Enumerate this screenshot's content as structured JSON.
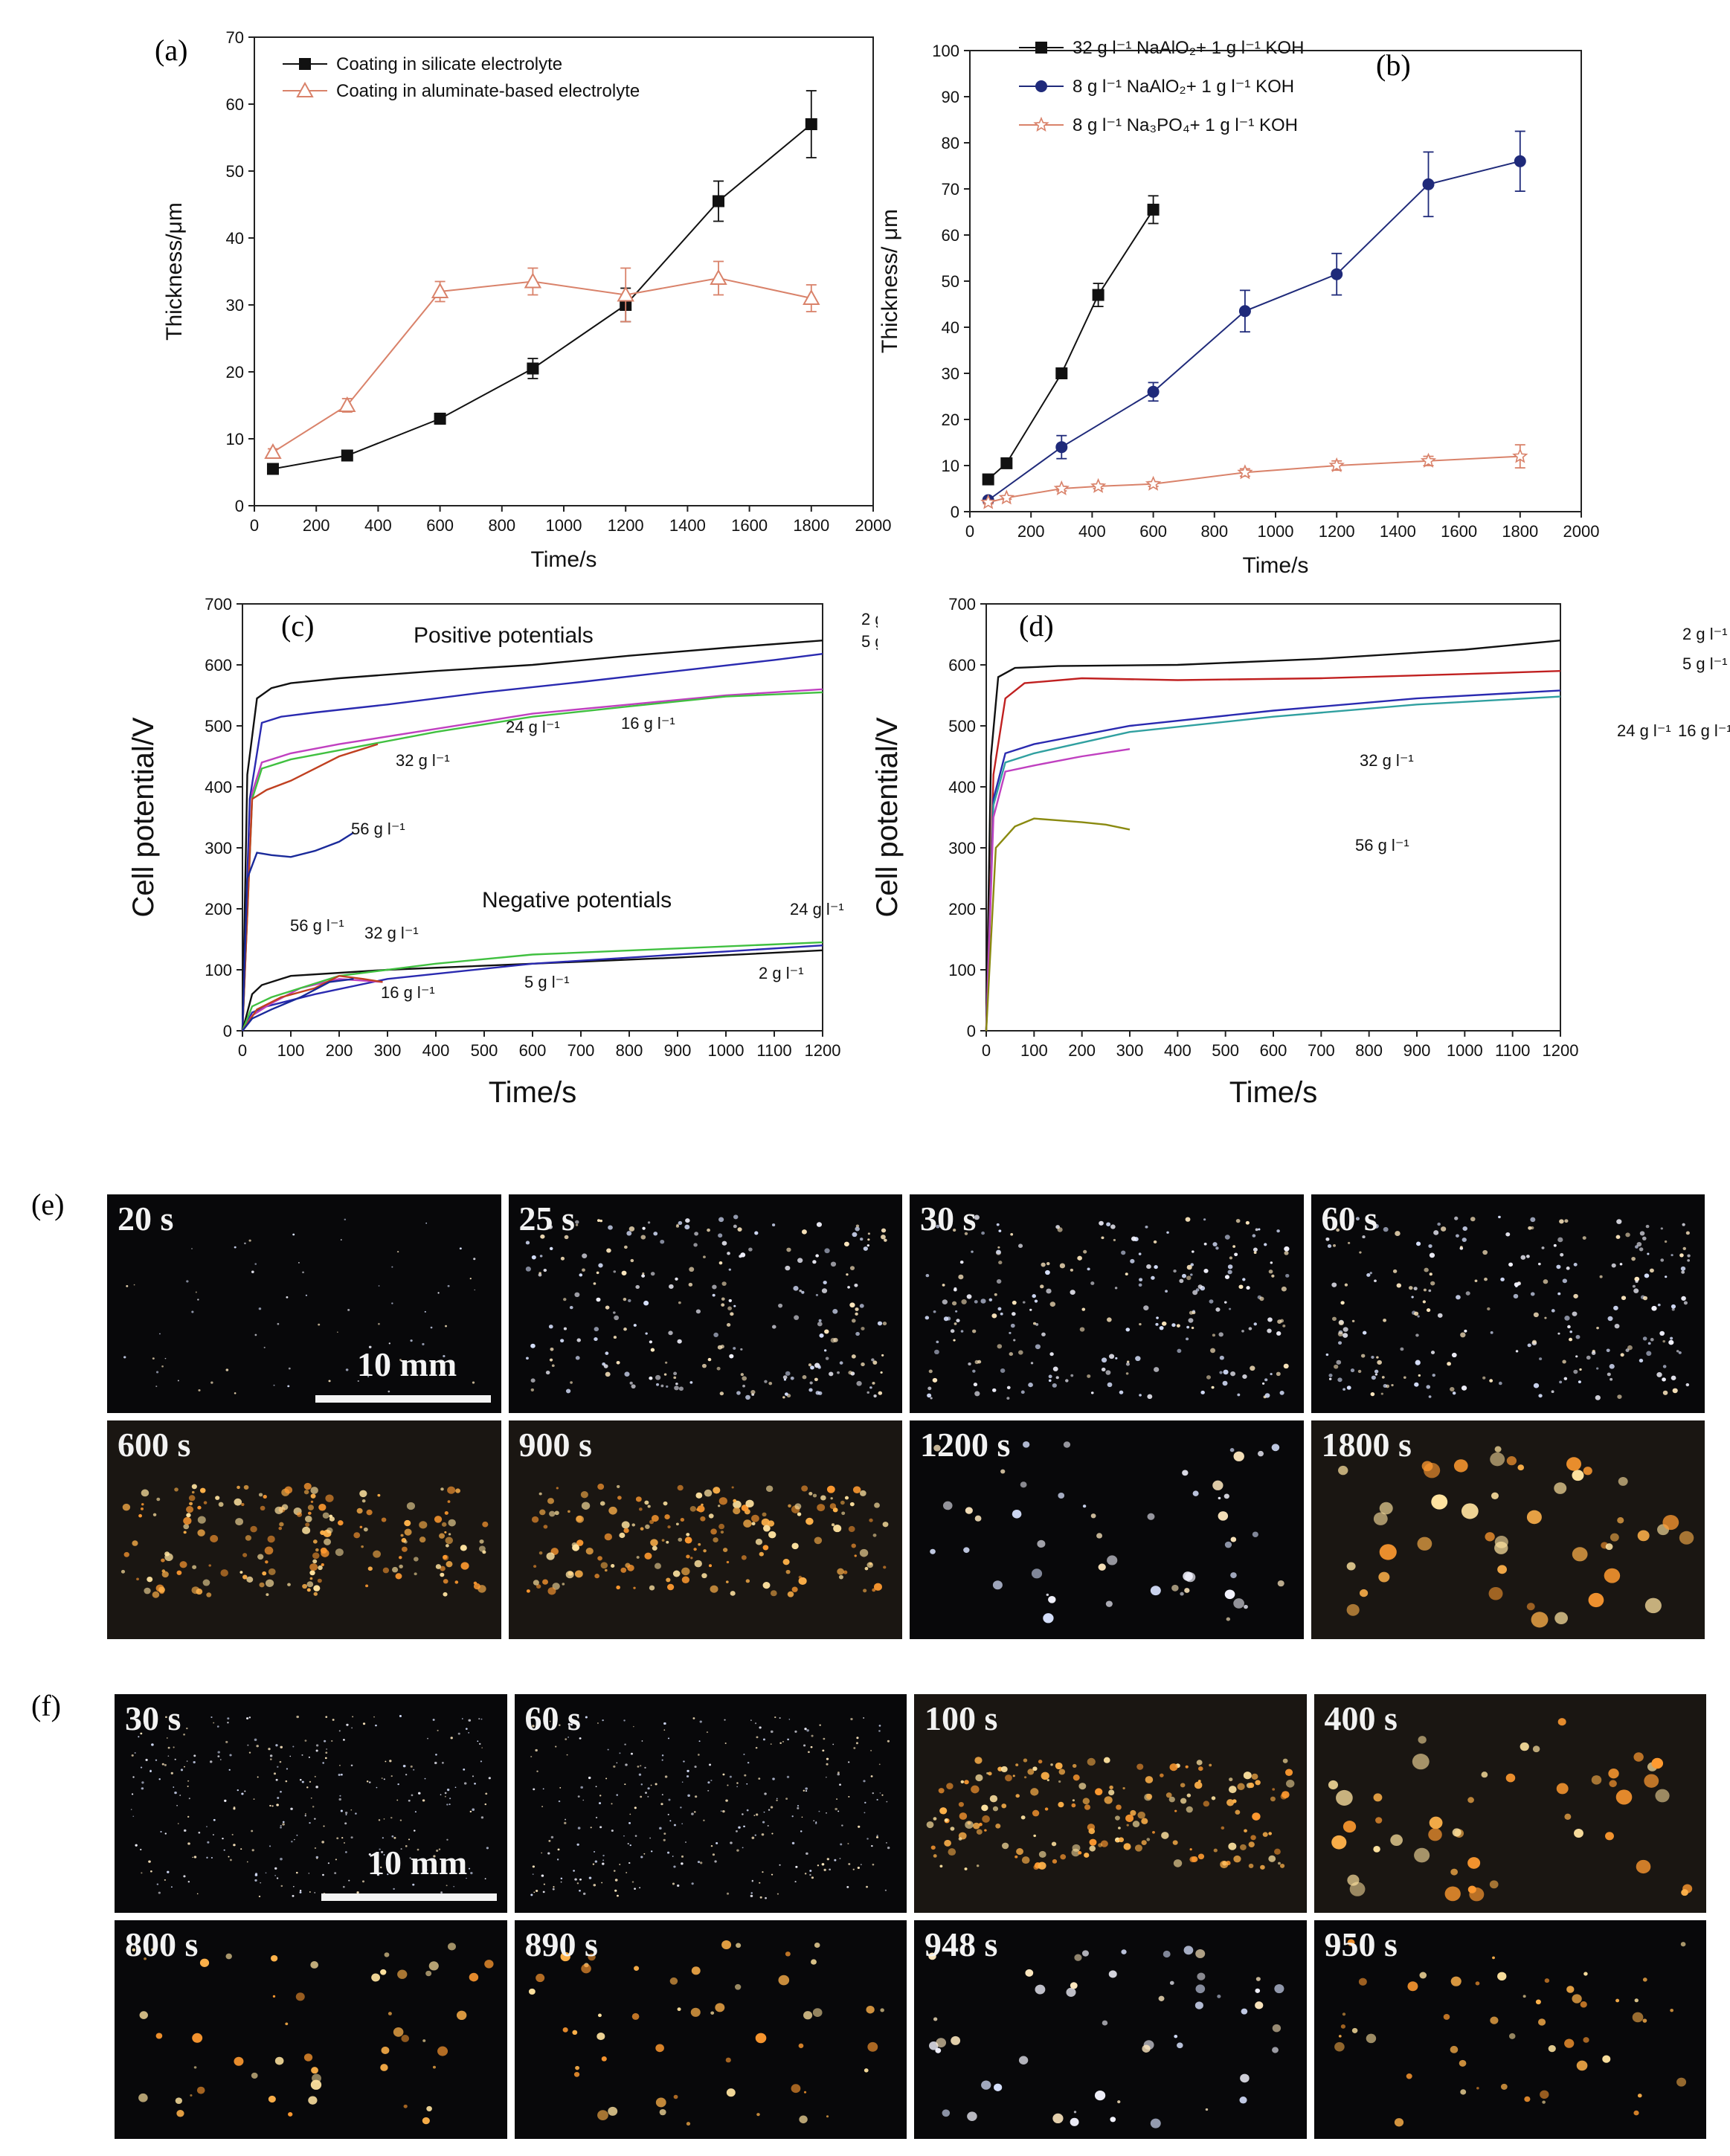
{
  "panels": {
    "a": "(a)",
    "b": "(b)",
    "c": "(c)",
    "d": "(d)",
    "e": "(e)",
    "f": "(f)"
  },
  "chart_data": [
    {
      "id": "a",
      "type": "line",
      "xlabel": "Time/s",
      "ylabel": "Thickness/μm",
      "xlim": [
        0,
        2000
      ],
      "ylim": [
        0,
        70
      ],
      "xticks": [
        0,
        200,
        400,
        600,
        800,
        1000,
        1200,
        1400,
        1600,
        1800,
        2000
      ],
      "yticks": [
        0,
        10,
        20,
        30,
        40,
        50,
        60,
        70
      ],
      "legend_position": "top-left",
      "series": [
        {
          "name": "Coating in silicate electrolyte",
          "color": "#111111",
          "marker": "square-filled",
          "x": [
            60,
            300,
            600,
            900,
            1200,
            1500,
            1800
          ],
          "y": [
            5.5,
            7.5,
            13,
            20.5,
            30,
            45.5,
            57
          ],
          "err": [
            0.5,
            0.5,
            0.8,
            1.5,
            2.5,
            3.0,
            5.0
          ]
        },
        {
          "name": "Coating in aluminate-based electrolyte",
          "color": "#d9826a",
          "marker": "triangle-open",
          "x": [
            60,
            300,
            600,
            900,
            1200,
            1500,
            1800
          ],
          "y": [
            8,
            15,
            32,
            33.5,
            31.5,
            34,
            31
          ],
          "err": [
            0.5,
            1.0,
            1.5,
            2.0,
            4.0,
            2.5,
            2.0
          ]
        }
      ]
    },
    {
      "id": "b",
      "type": "line",
      "xlabel": "Time/s",
      "ylabel": "Thickness/ μm",
      "xlim": [
        0,
        2000
      ],
      "ylim": [
        0,
        100
      ],
      "xticks": [
        0,
        200,
        400,
        600,
        800,
        1000,
        1200,
        1400,
        1600,
        1800,
        2000
      ],
      "yticks": [
        0,
        10,
        20,
        30,
        40,
        50,
        60,
        70,
        80,
        90,
        100
      ],
      "legend_position": "top-left",
      "series": [
        {
          "name": "32 g l⁻¹ NaAlO₂+ 1 g l⁻¹ KOH",
          "color": "#111111",
          "marker": "square-filled",
          "x": [
            60,
            120,
            300,
            420,
            600
          ],
          "y": [
            7,
            10.5,
            30,
            47,
            65.5
          ],
          "err": [
            0.5,
            0.6,
            1.0,
            2.5,
            3.0
          ]
        },
        {
          "name": "8 g l⁻¹ NaAlO₂+ 1 g l⁻¹ KOH",
          "color": "#1f2a7a",
          "marker": "circle-filled",
          "x": [
            60,
            300,
            600,
            900,
            1200,
            1500,
            1800
          ],
          "y": [
            2.5,
            14,
            26,
            43.5,
            51.5,
            71,
            76
          ],
          "err": [
            0.5,
            2.5,
            2.0,
            4.5,
            4.5,
            7.0,
            6.5
          ]
        },
        {
          "name": "8 g l⁻¹ Na₃PO₄+ 1 g l⁻¹ KOH",
          "color": "#d9826a",
          "marker": "star-open",
          "x": [
            60,
            120,
            300,
            420,
            600,
            900,
            1200,
            1500,
            1800
          ],
          "y": [
            2,
            3,
            5,
            5.5,
            6,
            8.5,
            10,
            11,
            12
          ],
          "err": [
            0.3,
            0.3,
            0.5,
            0.5,
            0.5,
            0.8,
            1.0,
            1.0,
            2.5
          ]
        }
      ]
    },
    {
      "id": "c",
      "type": "line",
      "xlabel": "Time/s",
      "ylabel": "Cell potential/V",
      "xlim": [
        0,
        1200
      ],
      "ylim": [
        0,
        700
      ],
      "xticks": [
        0,
        100,
        200,
        300,
        400,
        500,
        600,
        700,
        800,
        900,
        1000,
        1100,
        1200
      ],
      "yticks": [
        0,
        100,
        200,
        300,
        400,
        500,
        600,
        700
      ],
      "annotations": [
        "Positive potentials",
        "Negative potentials"
      ],
      "series": [
        {
          "name": "2 g l⁻¹",
          "color": "#111111",
          "x": [
            0,
            10,
            30,
            60,
            100,
            200,
            400,
            600,
            800,
            1000,
            1200
          ],
          "y": [
            0,
            420,
            545,
            562,
            570,
            578,
            590,
            600,
            615,
            628,
            640
          ]
        },
        {
          "name": "5 g l⁻¹",
          "color": "#2a2ab0",
          "x": [
            0,
            15,
            40,
            80,
            150,
            300,
            500,
            700,
            900,
            1100,
            1200
          ],
          "y": [
            0,
            380,
            505,
            515,
            522,
            535,
            555,
            572,
            590,
            608,
            618
          ]
        },
        {
          "name": "16 g l⁻¹",
          "color": "#c040c0",
          "x": [
            0,
            20,
            40,
            100,
            200,
            400,
            600,
            800,
            1000,
            1200
          ],
          "y": [
            0,
            390,
            440,
            455,
            470,
            495,
            520,
            535,
            550,
            560
          ]
        },
        {
          "name": "24 g l⁻¹",
          "color": "#40c040",
          "x": [
            0,
            20,
            40,
            100,
            200,
            400,
            600,
            800,
            1000,
            1200
          ],
          "y": [
            0,
            380,
            430,
            445,
            460,
            490,
            515,
            532,
            548,
            555
          ]
        },
        {
          "name": "32 g l⁻¹",
          "color": "#c04020",
          "x": [
            0,
            20,
            50,
            100,
            150,
            200,
            240,
            280
          ],
          "y": [
            0,
            380,
            395,
            410,
            430,
            450,
            460,
            470
          ]
        },
        {
          "name": "56 g l⁻¹",
          "color": "#1a2a9a",
          "x": [
            0,
            10,
            30,
            60,
            100,
            150,
            200,
            230
          ],
          "y": [
            0,
            250,
            292,
            288,
            285,
            295,
            310,
            325
          ]
        },
        {
          "name": "2 g l⁻¹",
          "color": "#111111",
          "x": [
            0,
            20,
            40,
            100,
            300,
            600,
            900,
            1200
          ],
          "y": [
            0,
            60,
            75,
            90,
            100,
            110,
            120,
            132
          ]
        },
        {
          "name": "5 g l⁻¹",
          "color": "#2a2ab0",
          "x": [
            0,
            20,
            50,
            150,
            300,
            600,
            900,
            1200
          ],
          "y": [
            0,
            30,
            40,
            60,
            85,
            110,
            125,
            140
          ]
        },
        {
          "name": "16 g l⁻¹",
          "color": "#c040c0",
          "x": [
            0,
            20,
            60,
            120,
            200,
            290
          ],
          "y": [
            0,
            25,
            45,
            70,
            85,
            80
          ]
        },
        {
          "name": "24 g l⁻¹",
          "color": "#40c040",
          "x": [
            0,
            20,
            60,
            200,
            400,
            600,
            900,
            1200
          ],
          "y": [
            0,
            40,
            55,
            90,
            110,
            125,
            135,
            145
          ]
        },
        {
          "name": "32 g l⁻¹",
          "color": "#c04020",
          "x": [
            0,
            30,
            80,
            150,
            200,
            250,
            290
          ],
          "y": [
            0,
            35,
            55,
            70,
            90,
            85,
            80
          ]
        },
        {
          "name": "56 g l⁻¹",
          "color": "#1a2a9a",
          "x": [
            0,
            20,
            60,
            120,
            180,
            230
          ],
          "y": [
            0,
            20,
            35,
            55,
            80,
            85
          ]
        }
      ]
    },
    {
      "id": "d",
      "type": "line",
      "xlabel": "Time/s",
      "ylabel": "Cell potential/V",
      "xlim": [
        0,
        1200
      ],
      "ylim": [
        0,
        700
      ],
      "xticks": [
        0,
        100,
        200,
        300,
        400,
        500,
        600,
        700,
        800,
        900,
        1000,
        1100,
        1200
      ],
      "yticks": [
        0,
        100,
        200,
        300,
        400,
        500,
        600,
        700
      ],
      "series": [
        {
          "name": "2 g l⁻¹",
          "color": "#111111",
          "x": [
            0,
            10,
            25,
            60,
            150,
            400,
            700,
            1000,
            1200
          ],
          "y": [
            0,
            450,
            580,
            595,
            598,
            600,
            610,
            625,
            640
          ]
        },
        {
          "name": "5 g l⁻¹",
          "color": "#c02020",
          "x": [
            0,
            15,
            40,
            80,
            200,
            400,
            700,
            1000,
            1200
          ],
          "y": [
            0,
            420,
            545,
            570,
            578,
            575,
            578,
            585,
            590
          ]
        },
        {
          "name": "16 g l⁻¹",
          "color": "#2a2ab0",
          "x": [
            0,
            15,
            40,
            100,
            300,
            600,
            900,
            1200
          ],
          "y": [
            0,
            380,
            455,
            470,
            500,
            525,
            545,
            558
          ]
        },
        {
          "name": "24 g l⁻¹",
          "color": "#30a0a0",
          "x": [
            0,
            15,
            40,
            100,
            300,
            600,
            900,
            1200
          ],
          "y": [
            0,
            370,
            440,
            455,
            490,
            515,
            535,
            548
          ]
        },
        {
          "name": "32 g l⁻¹",
          "color": "#c040c0",
          "x": [
            0,
            15,
            40,
            100,
            200,
            300
          ],
          "y": [
            0,
            350,
            425,
            435,
            450,
            462
          ]
        },
        {
          "name": "56 g l⁻¹",
          "color": "#8a8a10",
          "x": [
            0,
            20,
            60,
            100,
            150,
            200,
            250,
            300
          ],
          "y": [
            0,
            300,
            335,
            348,
            345,
            342,
            338,
            330
          ]
        }
      ]
    }
  ],
  "photos_e": {
    "scale_label": "10 mm",
    "frames": [
      {
        "label": "20 s",
        "density": "low",
        "tone": "white"
      },
      {
        "label": "25 s",
        "density": "medium",
        "tone": "white"
      },
      {
        "label": "30 s",
        "density": "medium",
        "tone": "white"
      },
      {
        "label": "60 s",
        "density": "medium",
        "tone": "white"
      },
      {
        "label": "600 s",
        "density": "cluster",
        "tone": "orange"
      },
      {
        "label": "900 s",
        "density": "cluster",
        "tone": "orange"
      },
      {
        "label": "1200 s",
        "density": "sparse",
        "tone": "white"
      },
      {
        "label": "1800 s",
        "density": "large",
        "tone": "orange"
      }
    ]
  },
  "photos_f": {
    "scale_label": "10 mm",
    "frames": [
      {
        "label": "30 s",
        "density": "fine",
        "tone": "white"
      },
      {
        "label": "60 s",
        "density": "fine",
        "tone": "white"
      },
      {
        "label": "100 s",
        "density": "cluster",
        "tone": "orange"
      },
      {
        "label": "400 s",
        "density": "large",
        "tone": "orange"
      },
      {
        "label": "800 s",
        "density": "sparse",
        "tone": "orange"
      },
      {
        "label": "890 s",
        "density": "sparse",
        "tone": "orange"
      },
      {
        "label": "948 s",
        "density": "sparse",
        "tone": "white"
      },
      {
        "label": "950 s",
        "density": "sparse",
        "tone": "orange"
      }
    ]
  }
}
